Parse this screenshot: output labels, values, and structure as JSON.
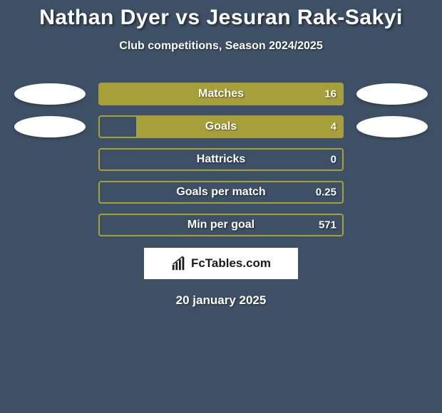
{
  "title": "Nathan Dyer vs Jesuran Rak-Sakyi",
  "subtitle": "Club competitions, Season 2024/2025",
  "date": "20 january 2025",
  "logo_text": "FcTables.com",
  "colors": {
    "background": "#3d5066",
    "bar_border": "#a7a03a",
    "bar_fill": "#a7a03a",
    "ellipse_fill": "#ffffff",
    "text": "#ffffff",
    "title_fontsize": 30,
    "subtitle_fontsize": 16,
    "label_fontsize": 16
  },
  "stats": [
    {
      "label": "Matches",
      "value_right": "16",
      "left_pct": 0,
      "right_pct": 100,
      "show_left_ellipse": true,
      "show_right_ellipse": true
    },
    {
      "label": "Goals",
      "value_right": "4",
      "left_pct": 0,
      "right_pct": 85,
      "show_left_ellipse": true,
      "show_right_ellipse": true
    },
    {
      "label": "Hattricks",
      "value_right": "0",
      "left_pct": 0,
      "right_pct": 0,
      "show_left_ellipse": false,
      "show_right_ellipse": false
    },
    {
      "label": "Goals per match",
      "value_right": "0.25",
      "left_pct": 0,
      "right_pct": 0,
      "show_left_ellipse": false,
      "show_right_ellipse": false
    },
    {
      "label": "Min per goal",
      "value_right": "571",
      "left_pct": 0,
      "right_pct": 0,
      "show_left_ellipse": false,
      "show_right_ellipse": false
    }
  ]
}
